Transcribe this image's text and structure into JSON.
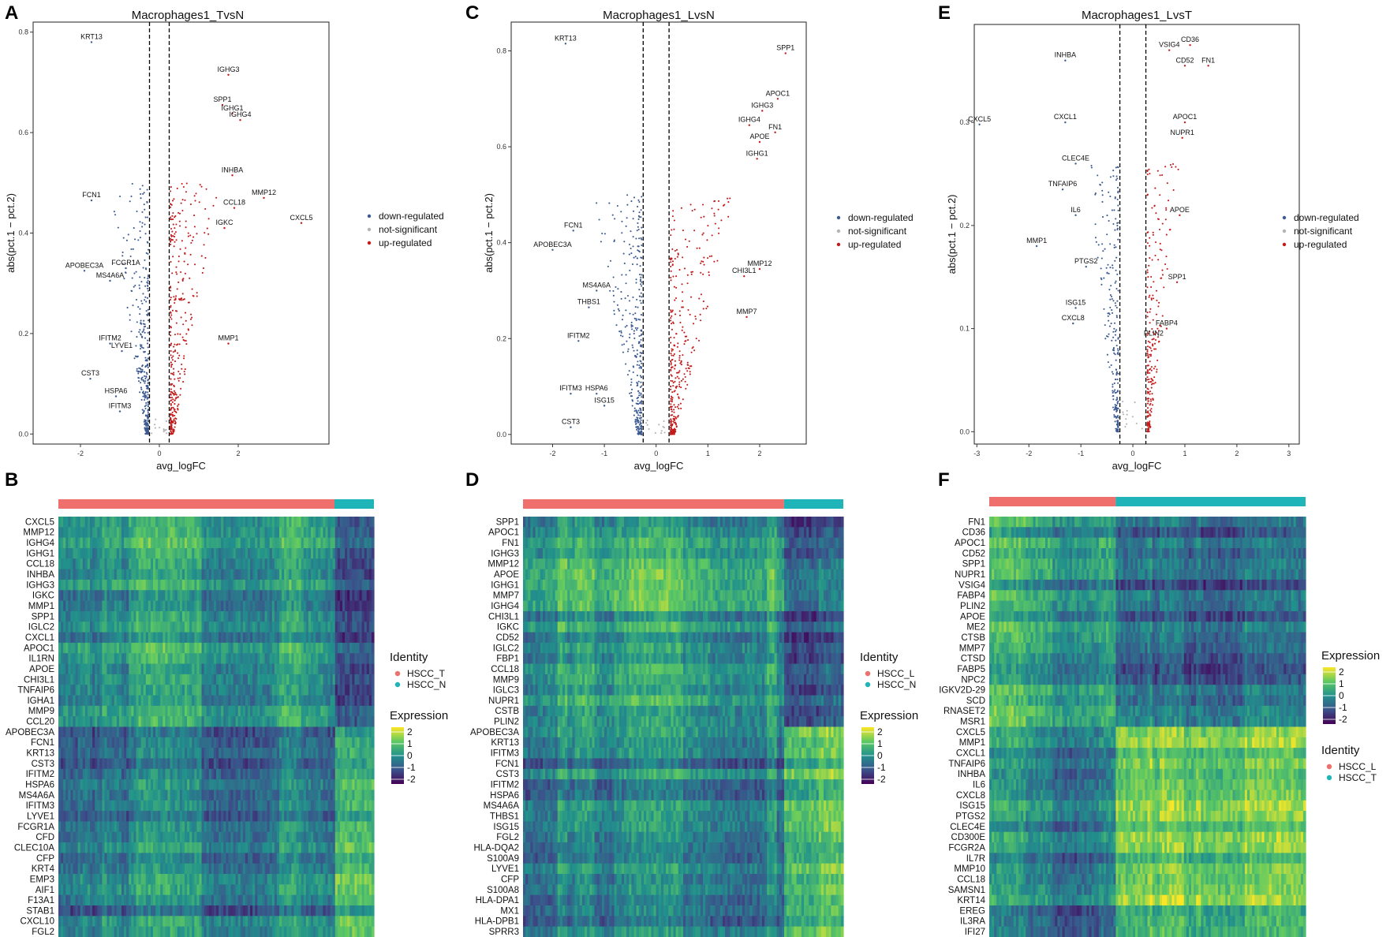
{
  "colors": {
    "down": "#3c5a91",
    "not_sig": "#b3b3b3",
    "up": "#c21a1a",
    "hscc_t": "#ef6f6c",
    "hscc_n": "#1fb4b8",
    "hscc_l": "#ef6f6c"
  },
  "chart_data": [
    {
      "panel": "A",
      "type": "scatter",
      "title": "Macrophages1_TvsN",
      "xlabel": "avg_logFC",
      "ylabel": "abs(pct.1 − pct.2)",
      "xlim": [
        -3.2,
        4.3
      ],
      "ylim": [
        -0.02,
        0.82
      ],
      "xticks": [
        -2,
        0,
        2
      ],
      "yticks": [
        0.0,
        0.2,
        0.4,
        0.6,
        0.8
      ],
      "ytick_labels": [
        "0.0",
        "0.2",
        "0.4",
        "0.6",
        "0.8"
      ],
      "thresholds": [
        -0.25,
        0.25
      ],
      "legend": [
        "down-regulated",
        "not-significant",
        "up-regulated"
      ],
      "cloud": {
        "seed": 11,
        "n_down": 330,
        "n_up": 330,
        "y_max": 0.5
      },
      "genes": [
        {
          "name": "KRT13",
          "x": -1.72,
          "y": 0.78,
          "dir": "down"
        },
        {
          "name": "FCN1",
          "x": -1.72,
          "y": 0.465,
          "dir": "down"
        },
        {
          "name": "APOBEC3A",
          "x": -1.9,
          "y": 0.325,
          "dir": "down"
        },
        {
          "name": "FCGR1A",
          "x": -0.85,
          "y": 0.33,
          "dir": "down"
        },
        {
          "name": "MS4A6A",
          "x": -1.25,
          "y": 0.305,
          "dir": "down"
        },
        {
          "name": "IFITM2",
          "x": -1.25,
          "y": 0.18,
          "dir": "down"
        },
        {
          "name": "LYVE1",
          "x": -0.95,
          "y": 0.165,
          "dir": "down"
        },
        {
          "name": "CST3",
          "x": -1.75,
          "y": 0.11,
          "dir": "down"
        },
        {
          "name": "HSPA6",
          "x": -1.1,
          "y": 0.075,
          "dir": "down"
        },
        {
          "name": "IFITM3",
          "x": -1.0,
          "y": 0.045,
          "dir": "down"
        },
        {
          "name": "IGHG3",
          "x": 1.75,
          "y": 0.715,
          "dir": "up"
        },
        {
          "name": "SPP1",
          "x": 1.6,
          "y": 0.655,
          "dir": "up"
        },
        {
          "name": "IGHG1",
          "x": 1.85,
          "y": 0.638,
          "dir": "up"
        },
        {
          "name": "IGHG4",
          "x": 2.05,
          "y": 0.625,
          "dir": "up"
        },
        {
          "name": "INHBA",
          "x": 1.85,
          "y": 0.515,
          "dir": "up"
        },
        {
          "name": "MMP12",
          "x": 2.65,
          "y": 0.47,
          "dir": "up"
        },
        {
          "name": "CCL18",
          "x": 1.9,
          "y": 0.45,
          "dir": "up"
        },
        {
          "name": "IGKC",
          "x": 1.65,
          "y": 0.41,
          "dir": "up"
        },
        {
          "name": "CXCL5",
          "x": 3.6,
          "y": 0.42,
          "dir": "up"
        },
        {
          "name": "MMP1",
          "x": 1.75,
          "y": 0.18,
          "dir": "up"
        }
      ]
    },
    {
      "panel": "C",
      "type": "scatter",
      "title": "Macrophages1_LvsN",
      "xlabel": "avg_logFC",
      "ylabel": "abs(pct.1 − pct.2)",
      "xlim": [
        -2.8,
        2.9
      ],
      "ylim": [
        -0.02,
        0.86
      ],
      "xticks": [
        -2,
        -1,
        0,
        1,
        2
      ],
      "yticks": [
        0.0,
        0.2,
        0.4,
        0.6,
        0.8
      ],
      "ytick_labels": [
        "0.0",
        "0.2",
        "0.4",
        "0.6",
        "0.8"
      ],
      "thresholds": [
        -0.25,
        0.25
      ],
      "legend": [
        "down-regulated",
        "not-significant",
        "up-regulated"
      ],
      "cloud": {
        "seed": 23,
        "n_down": 330,
        "n_up": 330,
        "y_max": 0.5
      },
      "genes": [
        {
          "name": "KRT13",
          "x": -1.75,
          "y": 0.815,
          "dir": "down"
        },
        {
          "name": "FCN1",
          "x": -1.6,
          "y": 0.425,
          "dir": "down"
        },
        {
          "name": "APOBEC3A",
          "x": -2.0,
          "y": 0.385,
          "dir": "down"
        },
        {
          "name": "MS4A6A",
          "x": -1.15,
          "y": 0.3,
          "dir": "down"
        },
        {
          "name": "THBS1",
          "x": -1.3,
          "y": 0.265,
          "dir": "down"
        },
        {
          "name": "IFITM2",
          "x": -1.5,
          "y": 0.195,
          "dir": "down"
        },
        {
          "name": "HSPA6",
          "x": -1.15,
          "y": 0.085,
          "dir": "down"
        },
        {
          "name": "ISG15",
          "x": -1.0,
          "y": 0.06,
          "dir": "down"
        },
        {
          "name": "IFITM3",
          "x": -1.65,
          "y": 0.085,
          "dir": "down"
        },
        {
          "name": "CST3",
          "x": -1.65,
          "y": 0.015,
          "dir": "down"
        },
        {
          "name": "SPP1",
          "x": 2.5,
          "y": 0.795,
          "dir": "up"
        },
        {
          "name": "APOC1",
          "x": 2.35,
          "y": 0.7,
          "dir": "up"
        },
        {
          "name": "IGHG3",
          "x": 2.05,
          "y": 0.675,
          "dir": "up"
        },
        {
          "name": "IGHG4",
          "x": 1.8,
          "y": 0.645,
          "dir": "up"
        },
        {
          "name": "FN1",
          "x": 2.3,
          "y": 0.63,
          "dir": "up"
        },
        {
          "name": "APOE",
          "x": 2.0,
          "y": 0.61,
          "dir": "up"
        },
        {
          "name": "IGHG1",
          "x": 1.95,
          "y": 0.575,
          "dir": "up"
        },
        {
          "name": "MMP12",
          "x": 2.0,
          "y": 0.345,
          "dir": "up"
        },
        {
          "name": "CHI3L1",
          "x": 1.7,
          "y": 0.33,
          "dir": "up"
        },
        {
          "name": "MMP7",
          "x": 1.75,
          "y": 0.245,
          "dir": "up"
        }
      ]
    },
    {
      "panel": "E",
      "type": "scatter",
      "title": "Macrophages1_LvsT",
      "xlabel": "avg_logFC",
      "ylabel": "abs(pct.1 − pct.2)",
      "xlim": [
        -3.05,
        3.2
      ],
      "ylim": [
        -0.012,
        0.395
      ],
      "xticks": [
        -3,
        -2,
        -1,
        0,
        1,
        2,
        3
      ],
      "yticks": [
        0.0,
        0.1,
        0.2,
        0.3
      ],
      "ytick_labels": [
        "0.0",
        "0.1",
        "0.2",
        "0.3"
      ],
      "thresholds": [
        -0.25,
        0.25
      ],
      "legend": [
        "down-regulated",
        "not-significant",
        "up-regulated"
      ],
      "cloud": {
        "seed": 37,
        "n_down": 230,
        "n_up": 230,
        "y_max": 0.26,
        "narrow": true
      },
      "genes": [
        {
          "name": "CD36",
          "x": 1.1,
          "y": 0.375,
          "dir": "up"
        },
        {
          "name": "VSIG4",
          "x": 0.7,
          "y": 0.37,
          "dir": "up"
        },
        {
          "name": "CD52",
          "x": 1.0,
          "y": 0.355,
          "dir": "up"
        },
        {
          "name": "FN1",
          "x": 1.45,
          "y": 0.355,
          "dir": "up"
        },
        {
          "name": "APOC1",
          "x": 1.0,
          "y": 0.3,
          "dir": "up"
        },
        {
          "name": "NUPR1",
          "x": 0.95,
          "y": 0.285,
          "dir": "up"
        },
        {
          "name": "APOE",
          "x": 0.9,
          "y": 0.21,
          "dir": "up"
        },
        {
          "name": "SPP1",
          "x": 0.85,
          "y": 0.145,
          "dir": "up"
        },
        {
          "name": "FABP4",
          "x": 0.65,
          "y": 0.1,
          "dir": "up"
        },
        {
          "name": "PLIN2",
          "x": 0.4,
          "y": 0.09,
          "dir": "up"
        },
        {
          "name": "INHBA",
          "x": -1.3,
          "y": 0.36,
          "dir": "down"
        },
        {
          "name": "CXCL5",
          "x": -2.95,
          "y": 0.298,
          "dir": "down"
        },
        {
          "name": "CXCL1",
          "x": -1.3,
          "y": 0.3,
          "dir": "down"
        },
        {
          "name": "CLEC4E",
          "x": -1.1,
          "y": 0.26,
          "dir": "down"
        },
        {
          "name": "TNFAIP6",
          "x": -1.35,
          "y": 0.235,
          "dir": "down"
        },
        {
          "name": "IL6",
          "x": -1.1,
          "y": 0.21,
          "dir": "down"
        },
        {
          "name": "MMP1",
          "x": -1.85,
          "y": 0.18,
          "dir": "down"
        },
        {
          "name": "PTGS2",
          "x": -0.9,
          "y": 0.16,
          "dir": "down"
        },
        {
          "name": "ISG15",
          "x": -1.1,
          "y": 0.12,
          "dir": "down"
        },
        {
          "name": "CXCL8",
          "x": -1.15,
          "y": 0.105,
          "dir": "down"
        }
      ]
    },
    {
      "panel": "B",
      "type": "heatmap",
      "rows": [
        "CXCL5",
        "MMP12",
        "IGHG4",
        "IGHG1",
        "CCL18",
        "INHBA",
        "IGHG3",
        "IGKC",
        "MMP1",
        "SPP1",
        "IGLC2",
        "CXCL1",
        "APOC1",
        "IL1RN",
        "APOE",
        "CHI3L1",
        "TNFAIP6",
        "IGHA1",
        "MMP9",
        "CCL20",
        "APOBEC3A",
        "FCN1",
        "KRT13",
        "CST3",
        "IFITM2",
        "HSPA6",
        "MS4A6A",
        "IFITM3",
        "LYVE1",
        "FCGR1A",
        "CFD",
        "CLEC10A",
        "CFP",
        "KRT4",
        "EMP3",
        "AIF1",
        "F13A1",
        "STAB1",
        "CXCL10",
        "FGL2"
      ],
      "groups": [
        {
          "name": "HSCC_T",
          "frac": 0.875,
          "color": "#ef6f6c"
        },
        {
          "name": "HSCC_N",
          "frac": 0.125,
          "color": "#1fb4b8"
        }
      ],
      "n_up_rows": 20,
      "identity_title": "Identity",
      "identity_labels": [
        "HSCC_T",
        "HSCC_N"
      ],
      "expression_title": "Expression",
      "expression_ticks": [
        "2",
        "1",
        "0",
        "-1",
        "-2"
      ],
      "seed": 101
    },
    {
      "panel": "D",
      "type": "heatmap",
      "rows": [
        "SPP1",
        "APOC1",
        "FN1",
        "IGHG3",
        "MMP12",
        "APOE",
        "IGHG1",
        "MMP7",
        "IGHG4",
        "CHI3L1",
        "IGKC",
        "CD52",
        "IGLC2",
        "FBP1",
        "CCL18",
        "MMP9",
        "IGLC3",
        "NUPR1",
        "CSTB",
        "PLIN2",
        "APOBEC3A",
        "KRT13",
        "IFITM3",
        "FCN1",
        "CST3",
        "IFITM2",
        "HSPA6",
        "MS4A6A",
        "THBS1",
        "ISG15",
        "FGL2",
        "HLA-DQA2",
        "S100A9",
        "LYVE1",
        "CFP",
        "S100A8",
        "HLA-DPA1",
        "MX1",
        "HLA-DPB1",
        "SPRR3"
      ],
      "groups": [
        {
          "name": "HSCC_L",
          "frac": 0.815,
          "color": "#ef6f6c"
        },
        {
          "name": "HSCC_N",
          "frac": 0.185,
          "color": "#1fb4b8"
        }
      ],
      "n_up_rows": 20,
      "identity_title": "Identity",
      "identity_labels": [
        "HSCC_L",
        "HSCC_N"
      ],
      "expression_title": "Expression",
      "expression_ticks": [
        "2",
        "1",
        "0",
        "-1",
        "-2"
      ],
      "seed": 202
    },
    {
      "panel": "F",
      "type": "heatmap",
      "rows": [
        "FN1",
        "CD36",
        "APOC1",
        "CD52",
        "SPP1",
        "NUPR1",
        "VSIG4",
        "FABP4",
        "PLIN2",
        "APOE",
        "ME2",
        "CTSB",
        "MMP7",
        "CTSD",
        "FABP5",
        "NPC2",
        "IGKV2D-29",
        "SCD",
        "RNASET2",
        "MSR1",
        "CXCL5",
        "MMP1",
        "CXCL1",
        "TNFAIP6",
        "INHBA",
        "IL6",
        "CXCL8",
        "ISG15",
        "PTGS2",
        "CLEC4E",
        "CD300E",
        "FCGR2A",
        "IL7R",
        "MMP10",
        "CCL18",
        "SAMSN1",
        "KRT14",
        "EREG",
        "IL3RA",
        "IFI27"
      ],
      "groups": [
        {
          "name": "HSCC_L",
          "frac": 0.4,
          "color": "#ef6f6c"
        },
        {
          "name": "HSCC_T",
          "frac": 0.6,
          "color": "#1fb4b8"
        }
      ],
      "n_up_rows": 20,
      "identity_title": "Identity",
      "identity_labels": [
        "HSCC_L",
        "HSCC_T"
      ],
      "expression_title": "Expression",
      "expression_ticks": [
        "2",
        "1",
        "0",
        "-1",
        "-2"
      ],
      "seed": 303
    }
  ]
}
